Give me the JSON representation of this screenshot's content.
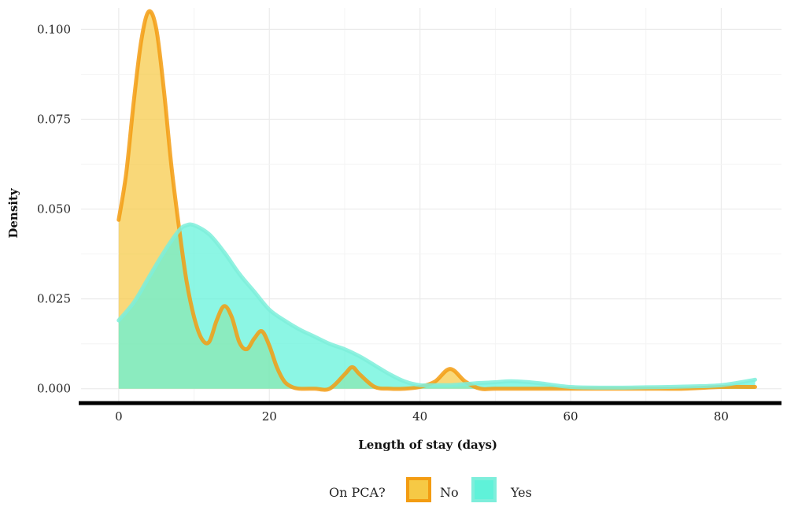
{
  "chart_data": {
    "type": "area",
    "title": "",
    "xlabel": "Length of stay (days)",
    "ylabel": "Density",
    "xlim": [
      -5,
      88
    ],
    "ylim": [
      -0.004,
      0.106
    ],
    "x_ticks": [
      0,
      20,
      40,
      60,
      80
    ],
    "y_ticks": [
      0.0,
      0.025,
      0.05,
      0.075,
      0.1
    ],
    "y_tick_labels": [
      "0.000",
      "0.025",
      "0.050",
      "0.075",
      "0.100"
    ],
    "x_tick_labels": [
      "0",
      "20",
      "40",
      "60",
      "80"
    ],
    "grid": true,
    "legend": {
      "title": "On PCA?",
      "position": "bottom"
    },
    "series": [
      {
        "name": "No",
        "fill": "#F6C945",
        "line": "#F39C12",
        "x": [
          0,
          1,
          2,
          3,
          4,
          5,
          6,
          7,
          8,
          9,
          10,
          11,
          12,
          13,
          14,
          15,
          16,
          17,
          18,
          19,
          20,
          21,
          22,
          23,
          24,
          26,
          28,
          30,
          31,
          32,
          34,
          36,
          38,
          40,
          42,
          44,
          46,
          48,
          50,
          55,
          60,
          65,
          70,
          75,
          80,
          84.5
        ],
        "y": [
          0.047,
          0.06,
          0.08,
          0.097,
          0.105,
          0.1,
          0.083,
          0.062,
          0.045,
          0.03,
          0.02,
          0.014,
          0.013,
          0.019,
          0.023,
          0.02,
          0.013,
          0.011,
          0.014,
          0.016,
          0.012,
          0.006,
          0.002,
          0.0005,
          0.0,
          0.0,
          0.0,
          0.004,
          0.006,
          0.004,
          0.0005,
          0.0,
          0.0,
          0.0005,
          0.002,
          0.0055,
          0.002,
          0.0,
          0.0,
          0.0,
          0.0,
          0.0,
          0.0,
          0.0,
          0.0005,
          0.0005
        ]
      },
      {
        "name": "Yes",
        "fill": "#5FF2D9",
        "line": "#7EEEDB",
        "x": [
          0,
          2,
          4,
          6,
          8,
          9,
          10,
          12,
          14,
          16,
          18,
          20,
          22,
          24,
          26,
          28,
          30,
          32,
          34,
          36,
          38,
          40,
          42,
          44,
          46,
          48,
          50,
          52,
          54,
          56,
          60,
          65,
          70,
          75,
          80,
          84.5
        ],
        "y": [
          0.019,
          0.024,
          0.031,
          0.038,
          0.044,
          0.0455,
          0.0455,
          0.043,
          0.038,
          0.032,
          0.027,
          0.022,
          0.019,
          0.0165,
          0.0145,
          0.0125,
          0.011,
          0.009,
          0.0065,
          0.004,
          0.002,
          0.001,
          0.001,
          0.001,
          0.0013,
          0.0016,
          0.0018,
          0.0021,
          0.0019,
          0.0015,
          0.0005,
          0.0003,
          0.0004,
          0.0006,
          0.001,
          0.0025
        ]
      }
    ]
  }
}
